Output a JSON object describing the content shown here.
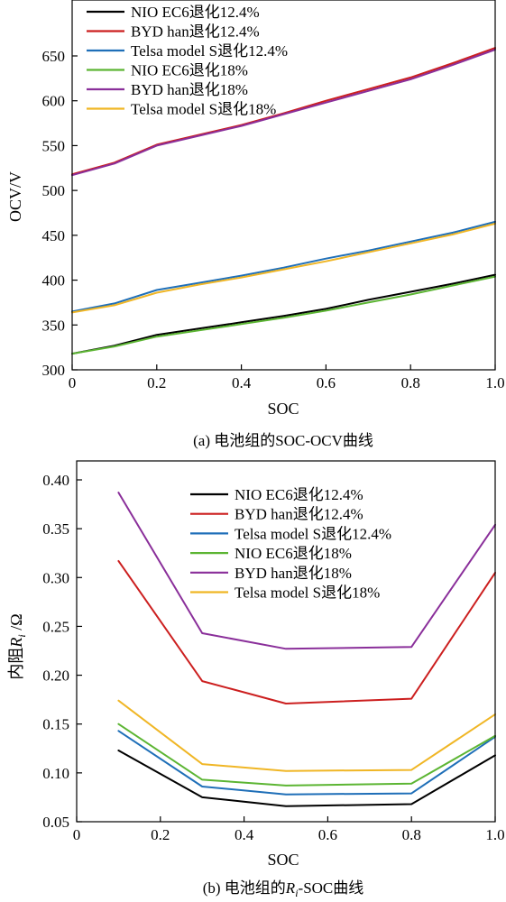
{
  "colors": {
    "nio": "#000000",
    "byd": "#cc1f1f",
    "tesla": "#1f6fb8",
    "nio18": "#5cb533",
    "byd18": "#8a2f9a",
    "tesla18": "#f0b625"
  },
  "chart_data": [
    {
      "type": "line",
      "caption": "(a) 电池组的SOC-OCV曲线",
      "xlabel": "SOC",
      "ylabel": "OCV/V",
      "xlim": [
        0,
        1.0
      ],
      "ylim": [
        300,
        650
      ],
      "xticks": [
        "0",
        "0.2",
        "0.4",
        "0.6",
        "0.8",
        "1.0"
      ],
      "yticks": [
        "300",
        "350",
        "400",
        "450",
        "500",
        "550",
        "600",
        "650"
      ],
      "legend_position": "top-left",
      "series": [
        {
          "name": "NIO EC6退化12.4%",
          "color_key": "nio",
          "points": [
            [
              0,
              318
            ],
            [
              0.1,
              327
            ],
            [
              0.2,
              339
            ],
            [
              0.3,
              346
            ],
            [
              0.4,
              353
            ],
            [
              0.5,
              360
            ],
            [
              0.6,
              368
            ],
            [
              0.7,
              378
            ],
            [
              0.8,
              387
            ],
            [
              0.9,
              396
            ],
            [
              1.0,
              406
            ]
          ]
        },
        {
          "name": "BYD han退化12.4%",
          "color_key": "byd",
          "points": [
            [
              0,
              518
            ],
            [
              0.1,
              531
            ],
            [
              0.2,
              551
            ],
            [
              0.3,
              562
            ],
            [
              0.4,
              573
            ],
            [
              0.5,
              586
            ],
            [
              0.6,
              600
            ],
            [
              0.7,
              613
            ],
            [
              0.8,
              626
            ],
            [
              0.9,
              642
            ],
            [
              1.0,
              659
            ]
          ]
        },
        {
          "name": "Telsa model S退化12.4%",
          "color_key": "tesla",
          "points": [
            [
              0,
              365
            ],
            [
              0.1,
              374
            ],
            [
              0.2,
              389
            ],
            [
              0.3,
              397
            ],
            [
              0.4,
              405
            ],
            [
              0.5,
              414
            ],
            [
              0.6,
              424
            ],
            [
              0.7,
              433
            ],
            [
              0.8,
              443
            ],
            [
              0.9,
              453
            ],
            [
              1.0,
              465
            ]
          ]
        },
        {
          "name": "NIO EC6退化18%",
          "color_key": "nio18",
          "points": [
            [
              0,
              318
            ],
            [
              0.1,
              326
            ],
            [
              0.2,
              337
            ],
            [
              0.3,
              344
            ],
            [
              0.4,
              351
            ],
            [
              0.5,
              358
            ],
            [
              0.6,
              366
            ],
            [
              0.7,
              375
            ],
            [
              0.8,
              384
            ],
            [
              0.9,
              394
            ],
            [
              1.0,
              404
            ]
          ]
        },
        {
          "name": "BYD han退化18%",
          "color_key": "byd18",
          "points": [
            [
              0,
              517
            ],
            [
              0.1,
              530
            ],
            [
              0.2,
              550
            ],
            [
              0.3,
              561
            ],
            [
              0.4,
              572
            ],
            [
              0.5,
              585
            ],
            [
              0.6,
              598
            ],
            [
              0.7,
              611
            ],
            [
              0.8,
              624
            ],
            [
              0.9,
              640
            ],
            [
              1.0,
              657
            ]
          ]
        },
        {
          "name": "Telsa model S退化18%",
          "color_key": "tesla18",
          "points": [
            [
              0,
              364
            ],
            [
              0.1,
              372
            ],
            [
              0.2,
              386
            ],
            [
              0.3,
              395
            ],
            [
              0.4,
              403
            ],
            [
              0.5,
              412
            ],
            [
              0.6,
              421
            ],
            [
              0.7,
              431
            ],
            [
              0.8,
              441
            ],
            [
              0.9,
              451
            ],
            [
              1.0,
              463
            ]
          ]
        }
      ]
    },
    {
      "type": "line",
      "caption_prefix": "(b) 电池组的",
      "caption_var": "R",
      "caption_sub": "i",
      "caption_suffix": "-SOC曲线",
      "xlabel": "SOC",
      "ylabel_prefix": "内阻",
      "ylabel_var": "R",
      "ylabel_sub": "i",
      "ylabel_suffix": " /Ω",
      "xlim": [
        0,
        1.0
      ],
      "ylim": [
        0.05,
        0.4
      ],
      "xticks": [
        "0",
        "0.2",
        "0.4",
        "0.6",
        "0.8",
        "1.0"
      ],
      "yticks": [
        "0.05",
        "0.10",
        "0.15",
        "0.20",
        "0.25",
        "0.30",
        "0.35",
        "0.40"
      ],
      "legend_position": "top-center",
      "series": [
        {
          "name": "NIO EC6退化12.4%",
          "color_key": "nio",
          "points": [
            [
              0.1,
              0.123
            ],
            [
              0.3,
              0.075
            ],
            [
              0.5,
              0.066
            ],
            [
              0.8,
              0.068
            ],
            [
              1.0,
              0.118
            ]
          ]
        },
        {
          "name": "BYD han退化12.4%",
          "color_key": "byd",
          "points": [
            [
              0.1,
              0.317
            ],
            [
              0.3,
              0.194
            ],
            [
              0.5,
              0.171
            ],
            [
              0.8,
              0.176
            ],
            [
              1.0,
              0.305
            ]
          ]
        },
        {
          "name": "Telsa model S退化12.4%",
          "color_key": "tesla",
          "points": [
            [
              0.1,
              0.143
            ],
            [
              0.3,
              0.086
            ],
            [
              0.5,
              0.078
            ],
            [
              0.8,
              0.079
            ],
            [
              1.0,
              0.137
            ]
          ]
        },
        {
          "name": "NIO EC6退化18%",
          "color_key": "nio18",
          "points": [
            [
              0.1,
              0.15
            ],
            [
              0.3,
              0.093
            ],
            [
              0.5,
              0.087
            ],
            [
              0.8,
              0.089
            ],
            [
              1.0,
              0.138
            ]
          ]
        },
        {
          "name": "BYD han退化18%",
          "color_key": "byd18",
          "points": [
            [
              0.1,
              0.387
            ],
            [
              0.3,
              0.243
            ],
            [
              0.5,
              0.227
            ],
            [
              0.8,
              0.229
            ],
            [
              1.0,
              0.354
            ]
          ]
        },
        {
          "name": "Telsa model S退化18%",
          "color_key": "tesla18",
          "points": [
            [
              0.1,
              0.174
            ],
            [
              0.3,
              0.109
            ],
            [
              0.5,
              0.102
            ],
            [
              0.8,
              0.103
            ],
            [
              1.0,
              0.16
            ]
          ]
        }
      ]
    }
  ]
}
